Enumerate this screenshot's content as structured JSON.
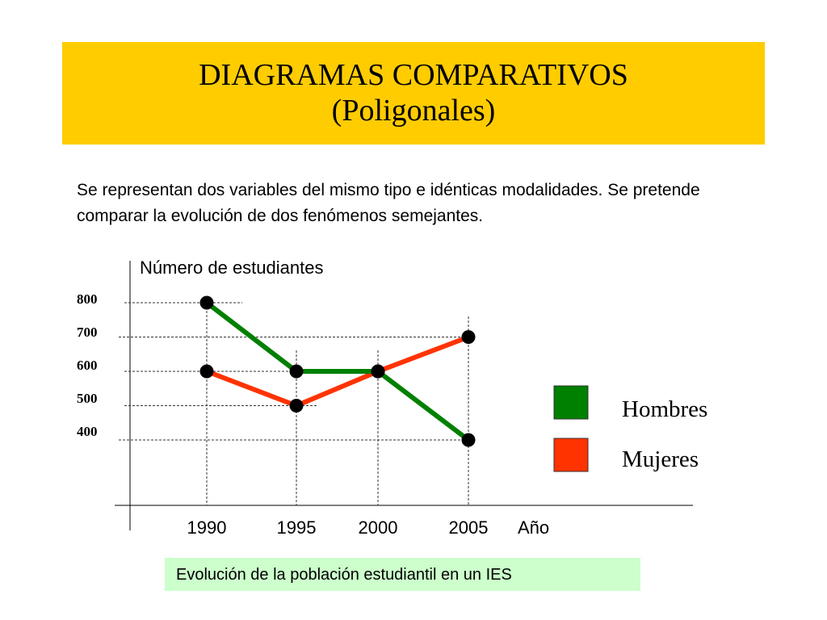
{
  "title": {
    "line1": "DIAGRAMAS COMPARATIVOS",
    "line2": "(Poligonales)"
  },
  "description": "Se representan dos variables del mismo tipo e idénticas modalidades. Se pretende comparar la evolución de dos fenómenos semejantes.",
  "caption": "Evolución de la población estudiantil en un IES",
  "colors": {
    "title_background": "#ffcc00",
    "caption_background": "#ccffcc",
    "hombres": "#008000",
    "mujeres": "#ff3300"
  },
  "chart_data": {
    "type": "line",
    "ylabel": "Número de estudiantes",
    "xlabel": "Año",
    "categories": [
      "1990",
      "1995",
      "2000",
      "2005"
    ],
    "y_ticks": [
      "800",
      "700",
      "600",
      "500",
      "400"
    ],
    "ylim": [
      400,
      800
    ],
    "grid": "dashed guide lines",
    "legend_position": "right",
    "series": [
      {
        "name": "Hombres",
        "color": "#008000",
        "values": [
          800,
          600,
          600,
          400
        ]
      },
      {
        "name": "Mujeres",
        "color": "#ff3300",
        "values": [
          600,
          500,
          600,
          700
        ]
      }
    ]
  }
}
